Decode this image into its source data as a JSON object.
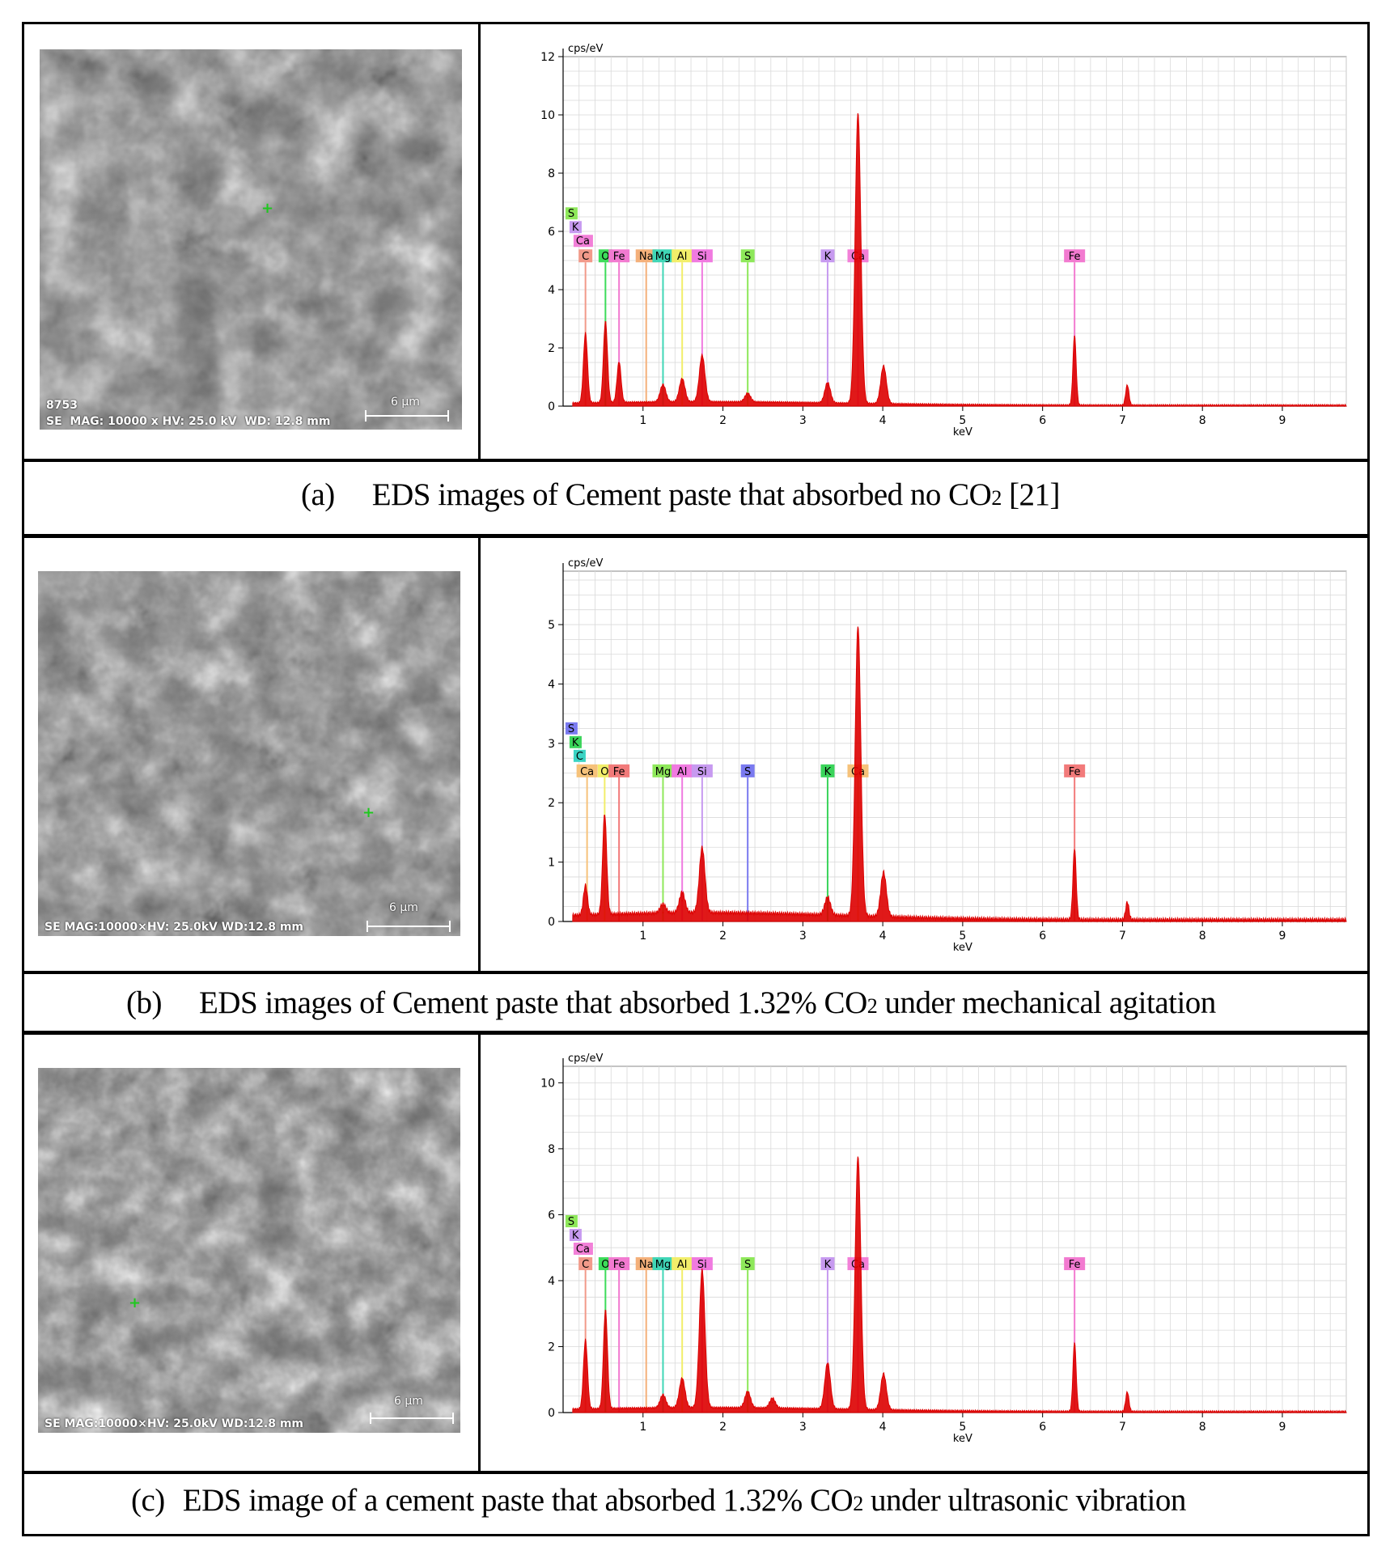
{
  "panels": [
    {
      "id": "a",
      "caption_label": "(a)",
      "caption_text_before": "EDS images of Cement paste that absorbed no CO",
      "caption_subscript": "2",
      "caption_text_after": " [21]",
      "sem": {
        "info": "SE  MAG: 10000 x HV: 25.0 kV  WD: 12.8 mm",
        "image_number": "8753",
        "scale": "6 µm"
      }
    },
    {
      "id": "b",
      "caption_label": "(b)",
      "caption_text_before": "EDS images of Cement paste that absorbed 1.32% CO",
      "caption_subscript": "2",
      "caption_text_after": " under mechanical agitation",
      "sem": {
        "info": "SE MAG:10000×HV: 25.0kV WD:12.8 mm",
        "image_number": "",
        "scale": "6 µm"
      }
    },
    {
      "id": "c",
      "caption_label": "(c)",
      "caption_text_before": "EDS image of a cement paste that absorbed 1.32% CO",
      "caption_subscript": "2",
      "caption_text_after": " under ultrasonic vibration",
      "sem": {
        "info": "SE MAG:10000×HV: 25.0kV WD:12.8 mm",
        "image_number": "",
        "scale": "6 µm"
      }
    }
  ],
  "colors": {
    "spectrum": "#dd0000",
    "grid": "#d9d9d9",
    "C": "#f29a8a",
    "O": "#3ddc5a",
    "Na": "#f4b07a",
    "Mg": "#3fd6b6",
    "Al": "#f2ee6a",
    "Si": "#f07ae0",
    "S": "#8ee85a",
    "K": "#c79af0",
    "Ca": "#f280d8",
    "Fe": "#f27ad0",
    "S_b": "#7a7af0",
    "K_b": "#3ad45a",
    "C_b": "#3ad4c4",
    "Ca_b": "#f6c27a",
    "O_b": "#f2ee6a",
    "Fe_b": "#f27a7a",
    "Mg_b": "#8ee85a",
    "Al_b": "#f07ae0",
    "Si_b": "#c79af0"
  },
  "chart_data": [
    {
      "type": "line",
      "title": "",
      "ylabel": "cps/eV",
      "xlabel": "keV",
      "xlim": [
        0,
        9.8
      ],
      "ylim": [
        0,
        12
      ],
      "xticks": [
        1,
        2,
        3,
        4,
        5,
        6,
        7,
        8,
        9
      ],
      "yticks": [
        0,
        2,
        4,
        6,
        8,
        10,
        12
      ],
      "grid": true,
      "peaks": [
        {
          "keV": 0.28,
          "value": 2.4
        },
        {
          "keV": 0.53,
          "value": 2.8
        },
        {
          "keV": 0.7,
          "value": 1.4
        },
        {
          "keV": 1.25,
          "value": 0.6
        },
        {
          "keV": 1.49,
          "value": 0.8
        },
        {
          "keV": 1.74,
          "value": 1.6
        },
        {
          "keV": 2.31,
          "value": 0.3
        },
        {
          "keV": 3.31,
          "value": 0.7
        },
        {
          "keV": 3.69,
          "value": 10.0
        },
        {
          "keV": 4.01,
          "value": 1.3
        },
        {
          "keV": 6.4,
          "value": 2.4
        },
        {
          "keV": 7.06,
          "value": 0.7
        }
      ],
      "element_lines": [
        {
          "element": "C",
          "keV": 0.28,
          "color_key": "C"
        },
        {
          "element": "O",
          "keV": 0.53,
          "color_key": "O"
        },
        {
          "element": "Fe",
          "keV": 0.7,
          "color_key": "Fe"
        },
        {
          "element": "Na",
          "keV": 1.04,
          "color_key": "Na"
        },
        {
          "element": "Mg",
          "keV": 1.25,
          "color_key": "Mg"
        },
        {
          "element": "Al",
          "keV": 1.49,
          "color_key": "Al"
        },
        {
          "element": "Si",
          "keV": 1.74,
          "color_key": "Si"
        },
        {
          "element": "S",
          "keV": 2.31,
          "color_key": "S"
        },
        {
          "element": "K",
          "keV": 3.31,
          "color_key": "K"
        },
        {
          "element": "Ca",
          "keV": 3.69,
          "color_key": "Ca"
        },
        {
          "element": "Fe",
          "keV": 6.4,
          "color_key": "Fe"
        }
      ],
      "stacked_labels": [
        {
          "element": "S",
          "color_key": "S"
        },
        {
          "element": "K",
          "color_key": "K"
        },
        {
          "element": "Ca",
          "color_key": "Ca"
        }
      ]
    },
    {
      "type": "line",
      "title": "",
      "ylabel": "cps/eV",
      "xlabel": "keV",
      "xlim": [
        0,
        9.8
      ],
      "ylim": [
        0,
        5.9
      ],
      "xticks": [
        1,
        2,
        3,
        4,
        5,
        6,
        7,
        8,
        9
      ],
      "yticks": [
        0,
        1,
        2,
        3,
        4,
        5
      ],
      "grid": true,
      "peaks": [
        {
          "keV": 0.28,
          "value": 0.5
        },
        {
          "keV": 0.52,
          "value": 1.7
        },
        {
          "keV": 1.25,
          "value": 0.15
        },
        {
          "keV": 1.49,
          "value": 0.35
        },
        {
          "keV": 1.74,
          "value": 1.1
        },
        {
          "keV": 3.31,
          "value": 0.3
        },
        {
          "keV": 3.69,
          "value": 4.9
        },
        {
          "keV": 4.01,
          "value": 0.75
        },
        {
          "keV": 6.4,
          "value": 1.2
        },
        {
          "keV": 7.06,
          "value": 0.3
        }
      ],
      "element_lines": [
        {
          "element": "Ca",
          "keV": 0.3,
          "color_key": "Ca_b"
        },
        {
          "element": "O",
          "keV": 0.52,
          "color_key": "O_b"
        },
        {
          "element": "Fe",
          "keV": 0.7,
          "color_key": "Fe_b"
        },
        {
          "element": "Mg",
          "keV": 1.25,
          "color_key": "Mg_b"
        },
        {
          "element": "Al",
          "keV": 1.49,
          "color_key": "Al_b"
        },
        {
          "element": "Si",
          "keV": 1.74,
          "color_key": "Si_b"
        },
        {
          "element": "S",
          "keV": 2.31,
          "color_key": "S_b"
        },
        {
          "element": "K",
          "keV": 3.31,
          "color_key": "K_b"
        },
        {
          "element": "Ca",
          "keV": 3.69,
          "color_key": "Ca_b"
        },
        {
          "element": "Fe",
          "keV": 6.4,
          "color_key": "Fe_b"
        }
      ],
      "stacked_labels": [
        {
          "element": "S",
          "color_key": "S_b"
        },
        {
          "element": "K",
          "color_key": "K_b"
        },
        {
          "element": "C",
          "color_key": "C_b"
        }
      ]
    },
    {
      "type": "line",
      "title": "",
      "ylabel": "cps/eV",
      "xlabel": "keV",
      "xlim": [
        0,
        9.8
      ],
      "ylim": [
        0,
        10.5
      ],
      "xticks": [
        1,
        2,
        3,
        4,
        5,
        6,
        7,
        8,
        9
      ],
      "yticks": [
        0,
        2,
        4,
        6,
        8,
        10
      ],
      "grid": true,
      "peaks": [
        {
          "keV": 0.28,
          "value": 2.1
        },
        {
          "keV": 0.53,
          "value": 3.0
        },
        {
          "keV": 1.25,
          "value": 0.4
        },
        {
          "keV": 1.49,
          "value": 0.9
        },
        {
          "keV": 1.74,
          "value": 4.2
        },
        {
          "keV": 2.31,
          "value": 0.5
        },
        {
          "keV": 2.62,
          "value": 0.3
        },
        {
          "keV": 3.31,
          "value": 1.4
        },
        {
          "keV": 3.69,
          "value": 7.7
        },
        {
          "keV": 4.01,
          "value": 1.1
        },
        {
          "keV": 6.4,
          "value": 2.1
        },
        {
          "keV": 7.06,
          "value": 0.6
        }
      ],
      "element_lines": [
        {
          "element": "C",
          "keV": 0.28,
          "color_key": "C"
        },
        {
          "element": "O",
          "keV": 0.53,
          "color_key": "O"
        },
        {
          "element": "Fe",
          "keV": 0.7,
          "color_key": "Fe"
        },
        {
          "element": "Na",
          "keV": 1.04,
          "color_key": "Na"
        },
        {
          "element": "Mg",
          "keV": 1.25,
          "color_key": "Mg"
        },
        {
          "element": "Al",
          "keV": 1.49,
          "color_key": "Al"
        },
        {
          "element": "Si",
          "keV": 1.74,
          "color_key": "Si"
        },
        {
          "element": "S",
          "keV": 2.31,
          "color_key": "S"
        },
        {
          "element": "K",
          "keV": 3.31,
          "color_key": "K"
        },
        {
          "element": "Ca",
          "keV": 3.69,
          "color_key": "Ca"
        },
        {
          "element": "Fe",
          "keV": 6.4,
          "color_key": "Fe"
        }
      ],
      "stacked_labels": [
        {
          "element": "S",
          "color_key": "S"
        },
        {
          "element": "K",
          "color_key": "K"
        },
        {
          "element": "Ca",
          "color_key": "Ca"
        }
      ]
    }
  ]
}
